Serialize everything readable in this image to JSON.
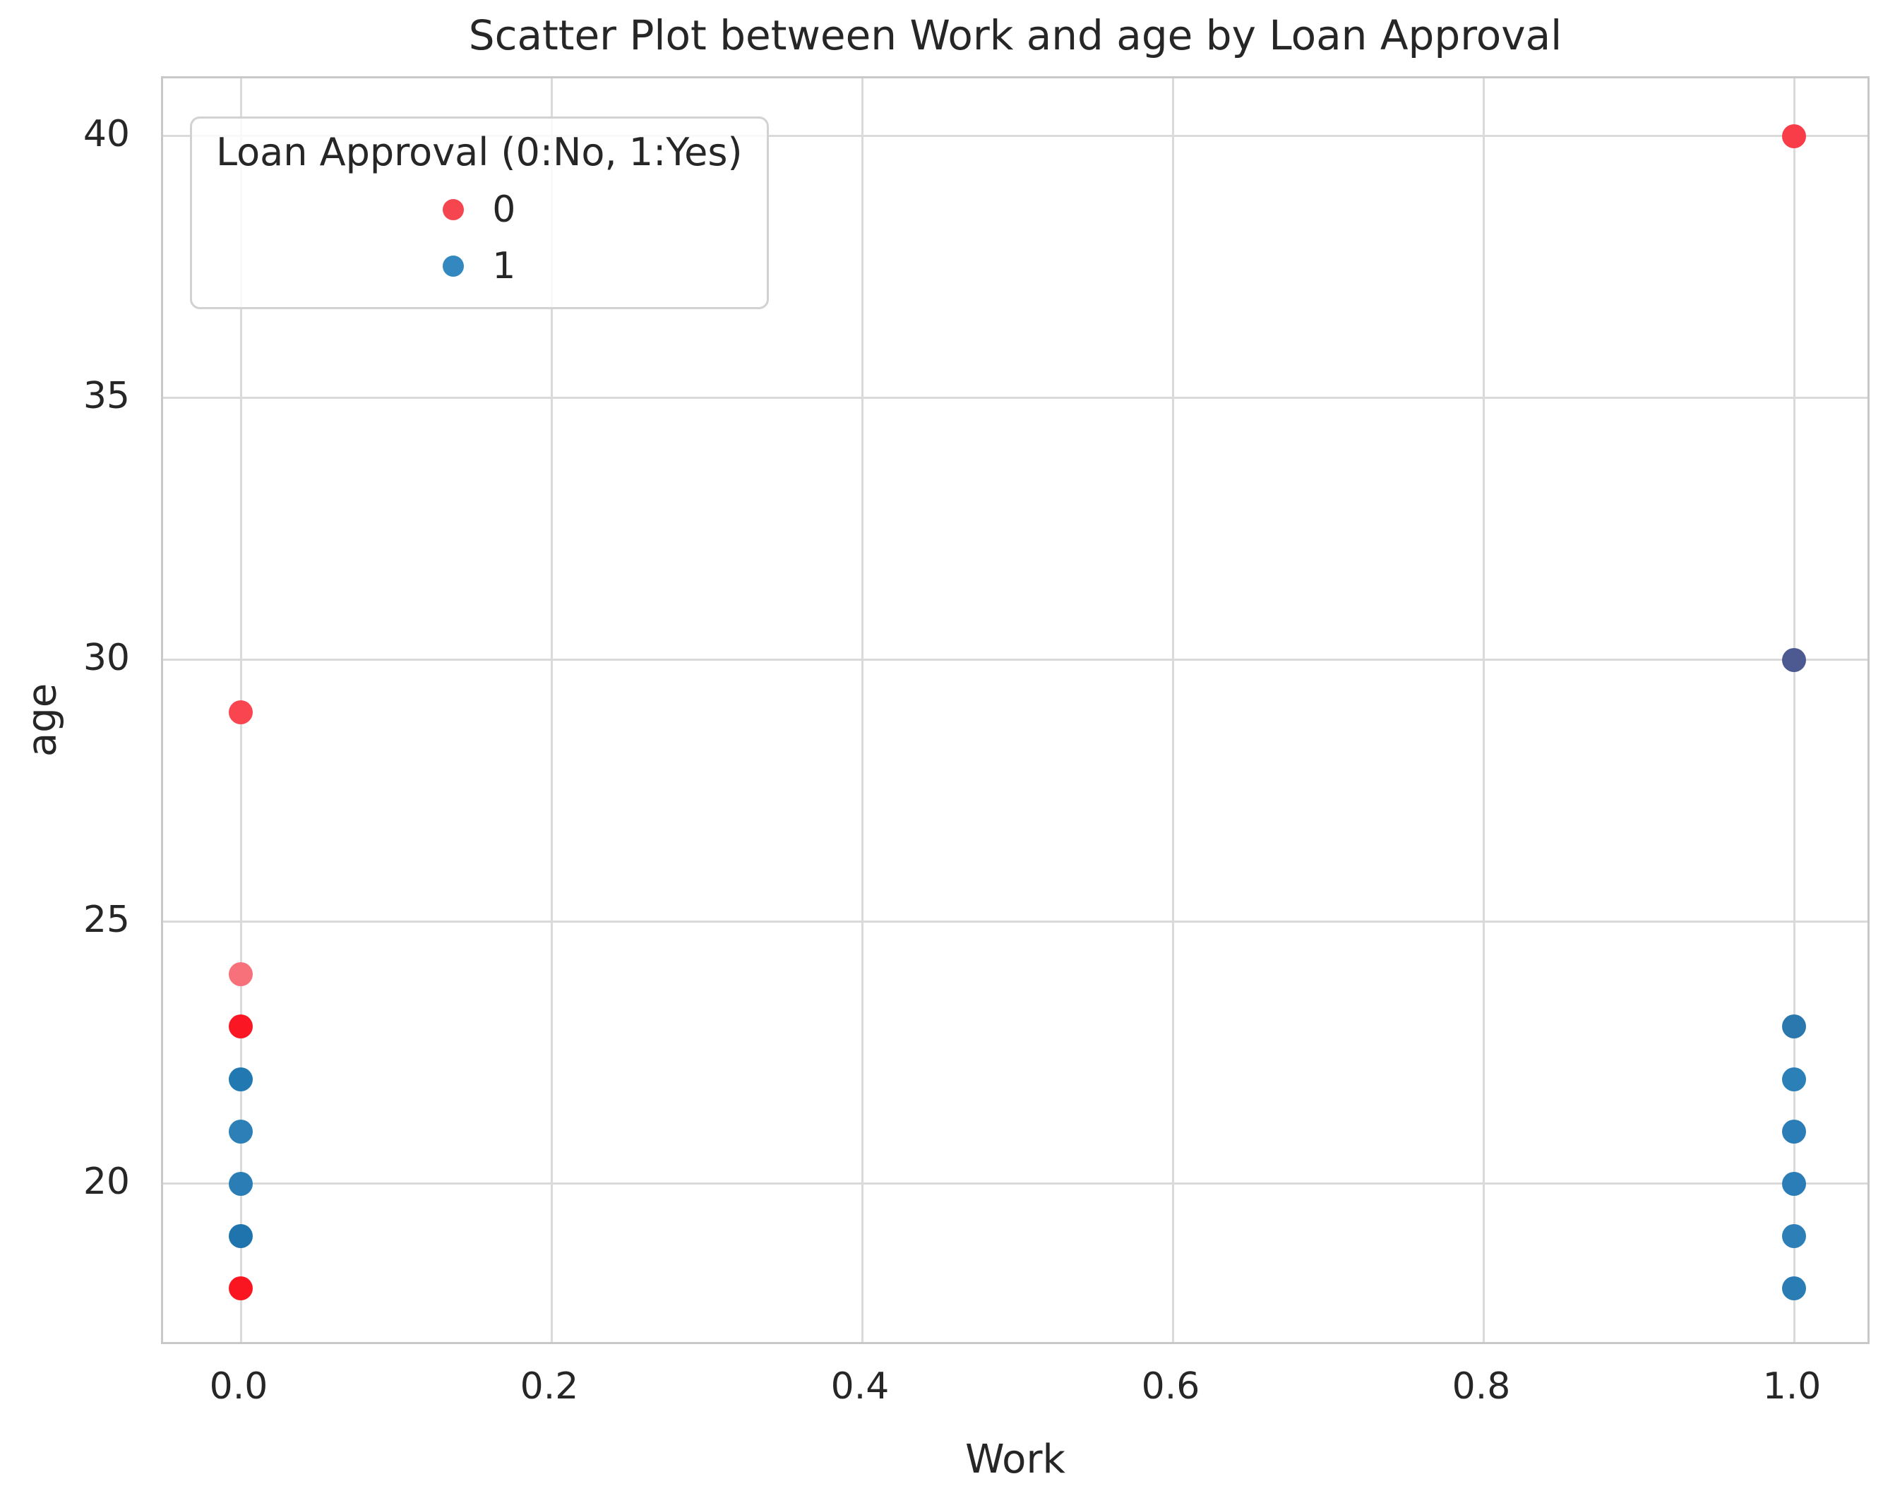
{
  "figure": {
    "title": "Scatter Plot between Work and age by Loan Approval",
    "xlabel": "Work",
    "ylabel": "age"
  },
  "legend": {
    "title": "Loan Approval (0:No, 1:Yes)",
    "position": "upper left",
    "entries": [
      {
        "label": "0",
        "color": "#f5454f"
      },
      {
        "label": "1",
        "color": "#3389bf"
      }
    ]
  },
  "chart_data": {
    "type": "scatter",
    "title": "Scatter Plot between Work and age by Loan Approval",
    "xlabel": "Work",
    "ylabel": "age",
    "xlim": [
      -0.05,
      1.05
    ],
    "ylim": [
      16.9,
      41.1
    ],
    "grid": true,
    "legend_position": "upper left",
    "x_ticks": [
      {
        "value": 0.0,
        "label": "0.0"
      },
      {
        "value": 0.2,
        "label": "0.2"
      },
      {
        "value": 0.4,
        "label": "0.4"
      },
      {
        "value": 0.6,
        "label": "0.6"
      },
      {
        "value": 0.8,
        "label": "0.8"
      },
      {
        "value": 1.0,
        "label": "1.0"
      }
    ],
    "y_ticks": [
      {
        "value": 20,
        "label": "20"
      },
      {
        "value": 25,
        "label": "25"
      },
      {
        "value": 30,
        "label": "30"
      },
      {
        "value": 35,
        "label": "35"
      },
      {
        "value": 40,
        "label": "40"
      }
    ],
    "series": [
      {
        "name": "0",
        "base_color": "#f5454f",
        "points": [
          [
            0,
            18
          ],
          [
            0,
            23
          ],
          [
            0,
            24
          ],
          [
            0,
            29
          ],
          [
            1,
            30
          ],
          [
            1,
            40
          ]
        ]
      },
      {
        "name": "1",
        "base_color": "#2d7fb8",
        "points": [
          [
            0,
            19
          ],
          [
            0,
            20
          ],
          [
            0,
            21
          ],
          [
            0,
            22
          ],
          [
            1,
            18
          ],
          [
            1,
            19
          ],
          [
            1,
            20
          ],
          [
            1,
            21
          ],
          [
            1,
            22
          ],
          [
            1,
            23
          ],
          [
            1,
            30
          ]
        ]
      }
    ],
    "rendered_points": [
      {
        "x": 0,
        "age": 29,
        "hue": "0",
        "fill": "#f8454f"
      },
      {
        "x": 0,
        "age": 24,
        "hue": "0",
        "fill": "#f7717a"
      },
      {
        "x": 0,
        "age": 23,
        "hue": "0",
        "fill": "#fa1723"
      },
      {
        "x": 0,
        "age": 22,
        "hue": "1",
        "fill": "#2279b2"
      },
      {
        "x": 0,
        "age": 21,
        "hue": "1",
        "fill": "#2c80b7"
      },
      {
        "x": 0,
        "age": 20,
        "hue": "1",
        "fill": "#2a7db5"
      },
      {
        "x": 0,
        "age": 19,
        "hue": "1",
        "fill": "#1f74ad"
      },
      {
        "x": 0,
        "age": 18,
        "hue": "0",
        "fill": "#fa1621"
      },
      {
        "x": 1,
        "age": 40,
        "hue": "0",
        "fill": "#f83c48"
      },
      {
        "x": 1,
        "age": 30,
        "hue": "0+1",
        "fill": "#4d5a91"
      },
      {
        "x": 1,
        "age": 23,
        "hue": "1",
        "fill": "#2b78af"
      },
      {
        "x": 1,
        "age": 22,
        "hue": "1",
        "fill": "#2c80b8"
      },
      {
        "x": 1,
        "age": 21,
        "hue": "1",
        "fill": "#2a7db6"
      },
      {
        "x": 1,
        "age": 20,
        "hue": "1",
        "fill": "#2a7db6"
      },
      {
        "x": 1,
        "age": 19,
        "hue": "1",
        "fill": "#2c7fb7"
      },
      {
        "x": 1,
        "age": 18,
        "hue": "1",
        "fill": "#2a7cb4"
      }
    ]
  }
}
